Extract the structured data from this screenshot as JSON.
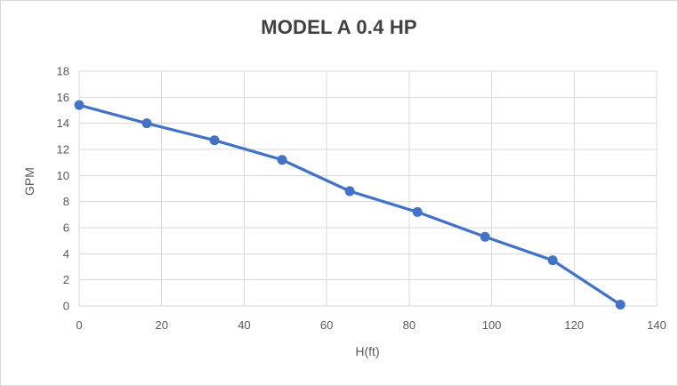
{
  "chart_data": {
    "type": "line",
    "title": "MODEL A 0.4 HP",
    "xlabel": "H(ft)",
    "ylabel": "GPM",
    "xlim": [
      0,
      140
    ],
    "ylim": [
      0,
      18
    ],
    "x_tick_step": 20,
    "y_tick_step": 2,
    "x_tick_labels": [
      "0",
      "20",
      "40",
      "60",
      "80",
      "100",
      "120",
      "140"
    ],
    "y_tick_labels": [
      "0",
      "2",
      "4",
      "6",
      "8",
      "10",
      "12",
      "14",
      "16",
      "18"
    ],
    "grid": true,
    "legend": false,
    "series": [
      {
        "name": "MODEL A 0.4 HP",
        "marker": "circle",
        "x": [
          0,
          16.4,
          32.8,
          49.2,
          65.6,
          82,
          98.4,
          114.8,
          131.2
        ],
        "values": [
          15.4,
          14,
          12.7,
          11.2,
          8.8,
          7.2,
          5.3,
          3.5,
          0.1
        ]
      }
    ],
    "colors": {
      "line": "#4472C4",
      "marker": "#4472C4",
      "gridline": "#d9d9d9",
      "axis_line": "#d9d9d9",
      "tick_label": "#595959",
      "axis_title": "#595959",
      "title": "#404040",
      "frame_border": "#d9d9d9",
      "background": "#ffffff"
    }
  }
}
